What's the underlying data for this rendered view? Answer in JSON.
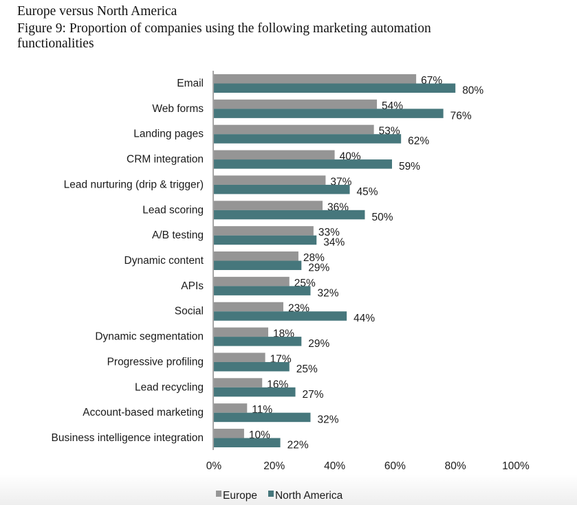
{
  "heading": "Europe versus North America",
  "figure_title_line1": "Figure 9: Proportion of companies using the following marketing automation",
  "figure_title_line2": "functionalities",
  "chart_data": {
    "type": "bar",
    "orientation": "horizontal",
    "title": "Figure 9: Proportion of companies using the following marketing automation functionalities",
    "categories": [
      "Email",
      "Web forms",
      "Landing pages",
      "CRM integration",
      "Lead nurturing (drip & trigger)",
      "Lead scoring",
      "A/B testing",
      "Dynamic content",
      "APIs",
      "Social",
      "Dynamic segmentation",
      "Progressive profiling",
      "Lead recycling",
      "Account-based marketing",
      "Business intelligence integration"
    ],
    "series": [
      {
        "name": "Europe",
        "color": "#959595",
        "values": [
          67,
          54,
          53,
          40,
          37,
          36,
          33,
          28,
          25,
          23,
          18,
          17,
          16,
          11,
          10
        ]
      },
      {
        "name": "North America",
        "color": "#46777c",
        "values": [
          80,
          76,
          62,
          59,
          45,
          50,
          34,
          29,
          32,
          44,
          29,
          25,
          27,
          32,
          22
        ]
      }
    ],
    "xlim": [
      0,
      100
    ],
    "xticks": [
      "0%",
      "20%",
      "40%",
      "60%",
      "80%",
      "100%"
    ],
    "legend_position": "bottom",
    "grid": false
  }
}
